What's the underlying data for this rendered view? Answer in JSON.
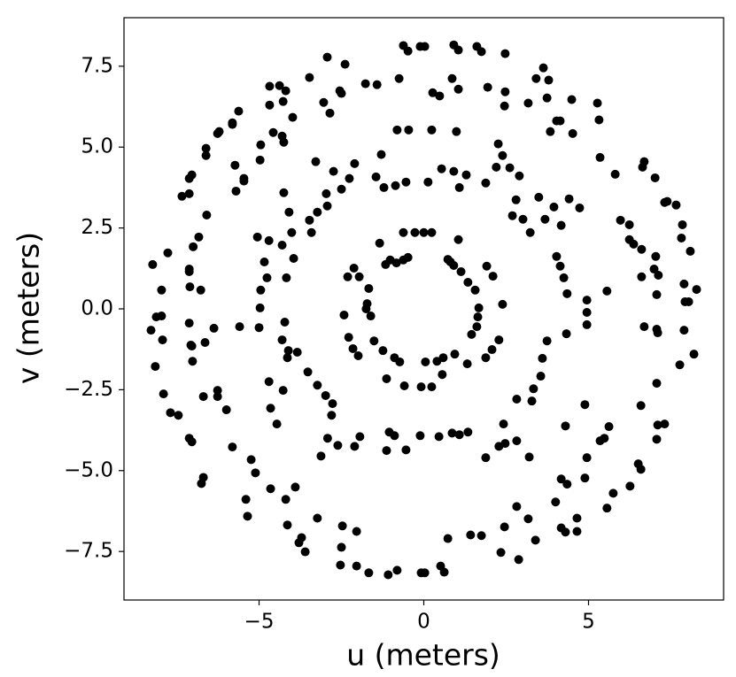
{
  "chart_data": {
    "type": "scatter",
    "color": "#000000",
    "xlabel": "u (meters)",
    "ylabel": "v (meters)",
    "xlim": [
      -9.1,
      9.1
    ],
    "ylim": [
      -9.0,
      9.0
    ],
    "xticks": [
      {
        "value": -5,
        "label": "−5"
      },
      0,
      5
    ],
    "yticks": [
      {
        "value": -7.5,
        "label": "−7.5"
      },
      {
        "value": -5,
        "label": "−5.0"
      },
      {
        "value": -2.5,
        "label": "−2.5"
      },
      {
        "value": 0,
        "label": "0.0"
      },
      2.5,
      {
        "value": 5,
        "label": "5.0"
      },
      7.5
    ],
    "x": [
      -0.62,
      -0.27,
      0,
      0.24,
      1.05,
      -1.34,
      -2.12,
      -2.31,
      1.91,
      2.1,
      2.39,
      -2.42,
      -2.28,
      -2.15,
      -1.99,
      1.88,
      2.07,
      2.28,
      -1.13,
      -0.59,
      -0.08,
      0.24,
      0.56,
      1.32,
      -1.96,
      -1.67,
      -1.72,
      -1.75,
      -1.61,
      -1.51,
      -1.24,
      -0.89,
      -0.73,
      0.4,
      0.59,
      0.94,
      1.67,
      1.64,
      1.61,
      1.45,
      -1.16,
      -0.83,
      -0.62,
      -0.48,
      0.73,
      0.91,
      1.13,
      1.34,
      1.56,
      -1.02,
      0.81,
      0.05,
      -0.46,
      -0.81,
      0.24,
      0.99,
      -1.29,
      2.26,
      2.39,
      -2.1,
      -2.26,
      -2.74,
      -3.28,
      -1.45,
      -1.21,
      -0.86,
      -0.54,
      0.13,
      0.54,
      0.91,
      1.08,
      1.29,
      1.88,
      2.2,
      2.61,
      2.9,
      3.49,
      2.8,
      2.69,
      3.01,
      3.23,
      3.68,
      3.95,
      4.41,
      4.73,
      4.17,
      4.03,
      4.14,
      4.25,
      4.35,
      4.95,
      4.95,
      4.95,
      4.33,
      3.74,
      3.6,
      3.55,
      3.33,
      3.28,
      2.82,
      2.42,
      2.47,
      3.2,
      2.82,
      1.88,
      2.28,
      1.34,
      1.08,
      0.86,
      0.46,
      -0.11,
      -0.89,
      -1.05,
      -0.54,
      -1.13,
      -2.1,
      -1.94,
      -2.61,
      -2.92,
      -2.8,
      -2.77,
      -2.98,
      -3.23,
      -3.52,
      -4.14,
      -4.3,
      -4.22,
      -5.0,
      -4.97,
      -4.95,
      -4.76,
      -4.17,
      -3.95,
      -4.3,
      -3.41,
      -3.47,
      -3.23,
      -2.93,
      -2.96,
      -2.5,
      -4.09,
      -4.01,
      -4.7,
      -4.84,
      -4.11,
      -4.27,
      -4.7,
      -4.65,
      -4.46,
      -3.12,
      -3.84,
      4.89,
      4.3,
      -0.62,
      -0.48,
      -0.11,
      0.03,
      0.91,
      1.05,
      1.61,
      1.75,
      2.47,
      3.41,
      3.63,
      3.79,
      3.74,
      4.49,
      4.14,
      4.03,
      3.84,
      4.52,
      5.27,
      5.32,
      5.35,
      5.81,
      6.64,
      6.69,
      7.02,
      7.31,
      7.39,
      7.66,
      7.85,
      7.82,
      8.09,
      7.9,
      8.28,
      8.04,
      7.93,
      7.12,
      7.04,
      6.99,
      5.97,
      6.24,
      6.24,
      6.37,
      6.61,
      6.61,
      5.56,
      7.07,
      6.69,
      7.07,
      7.1,
      7.9,
      8.2,
      7.77,
      7.07,
      6.59,
      7.31,
      7.1,
      7.07,
      6.51,
      6.59,
      5.75,
      5.56,
      6.26,
      5.62,
      5.48,
      5.35,
      4.95,
      4.89,
      4.17,
      4.35,
      4.0,
      4.65,
      4.17,
      4.3,
      4.65,
      3.39,
      3.17,
      2.82,
      2.45,
      2.34,
      2.88,
      1.75,
      1.42,
      0.73,
      0.51,
      0.62,
      0.03,
      -0.08,
      -1.08,
      -0.81,
      -1.67,
      -2.04,
      -2.53,
      -2.5,
      -2.04,
      -2.47,
      -3.23,
      -3.71,
      -3.79,
      -3.6,
      -4.14,
      -4.19,
      -4.65,
      -3.9,
      -5.11,
      -5.24,
      -5.81,
      -5.4,
      -5.35,
      -6.69,
      -6.75,
      -7.04,
      -7.12,
      -7.45,
      -7.69,
      -7.9,
      -8.15,
      -7.93,
      -8.28,
      -8.12,
      -7.96,
      -7.96,
      -8.23,
      -7.77,
      -7.12,
      -7.12,
      -6.77,
      -7.1,
      -7.12,
      -6.64,
      -7.04,
      -7.02,
      -6.69,
      -6.26,
      -6.26,
      -5.99,
      -7.07,
      -6.83,
      -6.59,
      -7.0,
      -6.37,
      -5.59,
      -7.34,
      -7.12,
      -7.12,
      -7.04,
      -6.61,
      -6.61,
      -6.26,
      -6.21,
      -5.81,
      -5.62,
      -5.73,
      -5.7,
      -5.46,
      -4.97,
      -4.95,
      -4.57,
      -4.3,
      -4.25,
      -3.98,
      -4.27,
      -4.68,
      -4.38,
      -4.19,
      -4.68,
      -3.47,
      -2.93,
      -3.04,
      -2.85,
      -2.55,
      -2.5,
      -2.39,
      -1.77,
      -1.42,
      -0.75,
      0.27,
      0.86,
      0.48,
      1.05,
      1.94,
      2.47,
      2.45,
      3.17,
      -5.05,
      -5.46,
      -4.25,
      -5.81
    ],
    "values": [
      2.36,
      2.36,
      2.36,
      2.36,
      2.14,
      2.03,
      1.26,
      0.99,
      1.32,
      1.01,
      0.14,
      -0.19,
      -0.88,
      -1.23,
      -1.45,
      -1.51,
      -1.26,
      -0.96,
      -2.16,
      -2.38,
      -2.41,
      -2.41,
      -2.03,
      -1.7,
      0.99,
      0.63,
      0.16,
      0,
      -0.22,
      -0.99,
      -1.29,
      -1.51,
      -1.64,
      -1.62,
      -1.51,
      -1.4,
      0.03,
      -0.25,
      -0.55,
      -0.79,
      1.37,
      1.42,
      1.51,
      1.59,
      1.53,
      1.34,
      1.15,
      0.82,
      0.58,
      1.51,
      1.45,
      -1.64,
      5.53,
      5.53,
      5.53,
      5.48,
      4.77,
      5.1,
      4.74,
      4.49,
      4.03,
      4.25,
      4.55,
      4.08,
      3.75,
      3.81,
      3.92,
      3.92,
      4.33,
      4.25,
      3.75,
      4.14,
      3.89,
      4.38,
      4.36,
      4.11,
      3.45,
      3.37,
      2.88,
      2.77,
      2.36,
      2.77,
      3.15,
      3.4,
      3.12,
      2.58,
      1.62,
      1.32,
      0.96,
      0.47,
      0.27,
      -0.11,
      -0.49,
      -0.77,
      -0.99,
      -1.53,
      -2.08,
      -2.47,
      -2.85,
      -2.79,
      -3.56,
      -4.16,
      -4.58,
      -4.08,
      -4.6,
      -4.25,
      -3.81,
      -3.89,
      -3.84,
      -3.95,
      -3.92,
      -3.92,
      -3.81,
      -4.36,
      -4.38,
      -4.25,
      -3.95,
      -4.22,
      -4.0,
      -3.29,
      -2.93,
      -2.68,
      -2.36,
      -1.95,
      -1.51,
      -0.96,
      -0.41,
      -0.58,
      0.03,
      0.58,
      0.96,
      0.96,
      1.56,
      1.97,
      2.36,
      2.74,
      2.99,
      3.18,
      3.56,
      3.7,
      2.99,
      2.36,
      2.11,
      1.45,
      -1.29,
      -2.52,
      -2.25,
      -3.07,
      -3.56,
      -4.55,
      -1.34,
      -2.96,
      -3.62,
      8.14,
      7.97,
      8.11,
      8.11,
      8.16,
      8.0,
      8.11,
      7.95,
      7.89,
      7.12,
      7.45,
      7.07,
      6.52,
      6.47,
      5.81,
      5.81,
      5.48,
      5.42,
      6.36,
      5.84,
      4.68,
      4.16,
      4.38,
      4.55,
      4.05,
      3.29,
      3.32,
      3.21,
      2.6,
      2.19,
      1.78,
      0.77,
      0.6,
      0.22,
      0.22,
      1.04,
      1.62,
      1.23,
      2.74,
      2.6,
      2.14,
      2.0,
      1.84,
      0.99,
      0.55,
      0.44,
      -0.55,
      -0.63,
      -0.74,
      -0.66,
      -1.4,
      -1.73,
      -2.3,
      -2.99,
      -3.56,
      -3.59,
      -4.03,
      -4.79,
      -4.96,
      -5.7,
      -6.16,
      -5.48,
      -3.64,
      -4.0,
      -4.08,
      -4.6,
      -5.23,
      -5.26,
      -5.42,
      -5.97,
      -6.47,
      -6.77,
      -6.9,
      -6.88,
      -7.15,
      -6.49,
      -6.11,
      -6.74,
      -7.53,
      -7.75,
      -7.01,
      -6.99,
      -7.1,
      -7.95,
      -8.14,
      -8.16,
      -8.16,
      -8.22,
      -8.08,
      -8.16,
      -7.95,
      -7.92,
      -7.37,
      -6.88,
      -6.71,
      -6.47,
      -7.07,
      -7.23,
      -7.51,
      -6.68,
      -5.89,
      -5.56,
      -5.51,
      -5.07,
      -4.66,
      -4.27,
      -5.89,
      -6.41,
      -5.21,
      -5.4,
      -4.11,
      -4.0,
      -3.29,
      -3.21,
      -2.63,
      -1.78,
      -0.96,
      -0.66,
      -0.25,
      0.58,
      -0.22,
      1.37,
      1.73,
      1.23,
      1.15,
      0.58,
      0.68,
      -0.44,
      -1.04,
      -1.15,
      -1.62,
      -2.71,
      -2.71,
      -2.52,
      -3.12,
      -1.12,
      2.22,
      2.9,
      1.92,
      -0.6,
      -0.55,
      3.48,
      3.56,
      4.03,
      4.14,
      4.74,
      4.96,
      5.42,
      5.48,
      5.7,
      6.11,
      4.44,
      3.64,
      4.03,
      4.6,
      5.07,
      5.45,
      5.34,
      5.15,
      5.92,
      6.41,
      6.88,
      6.9,
      6.74,
      6.3,
      7.15,
      7.78,
      6.38,
      6.05,
      6.74,
      6.66,
      7.56,
      6.96,
      6.93,
      7.12,
      6.68,
      7.12,
      6.58,
      6.79,
      6.85,
      6.71,
      6.27,
      6.36,
      2.22,
      3.95,
      3.59,
      5.75
    ]
  }
}
